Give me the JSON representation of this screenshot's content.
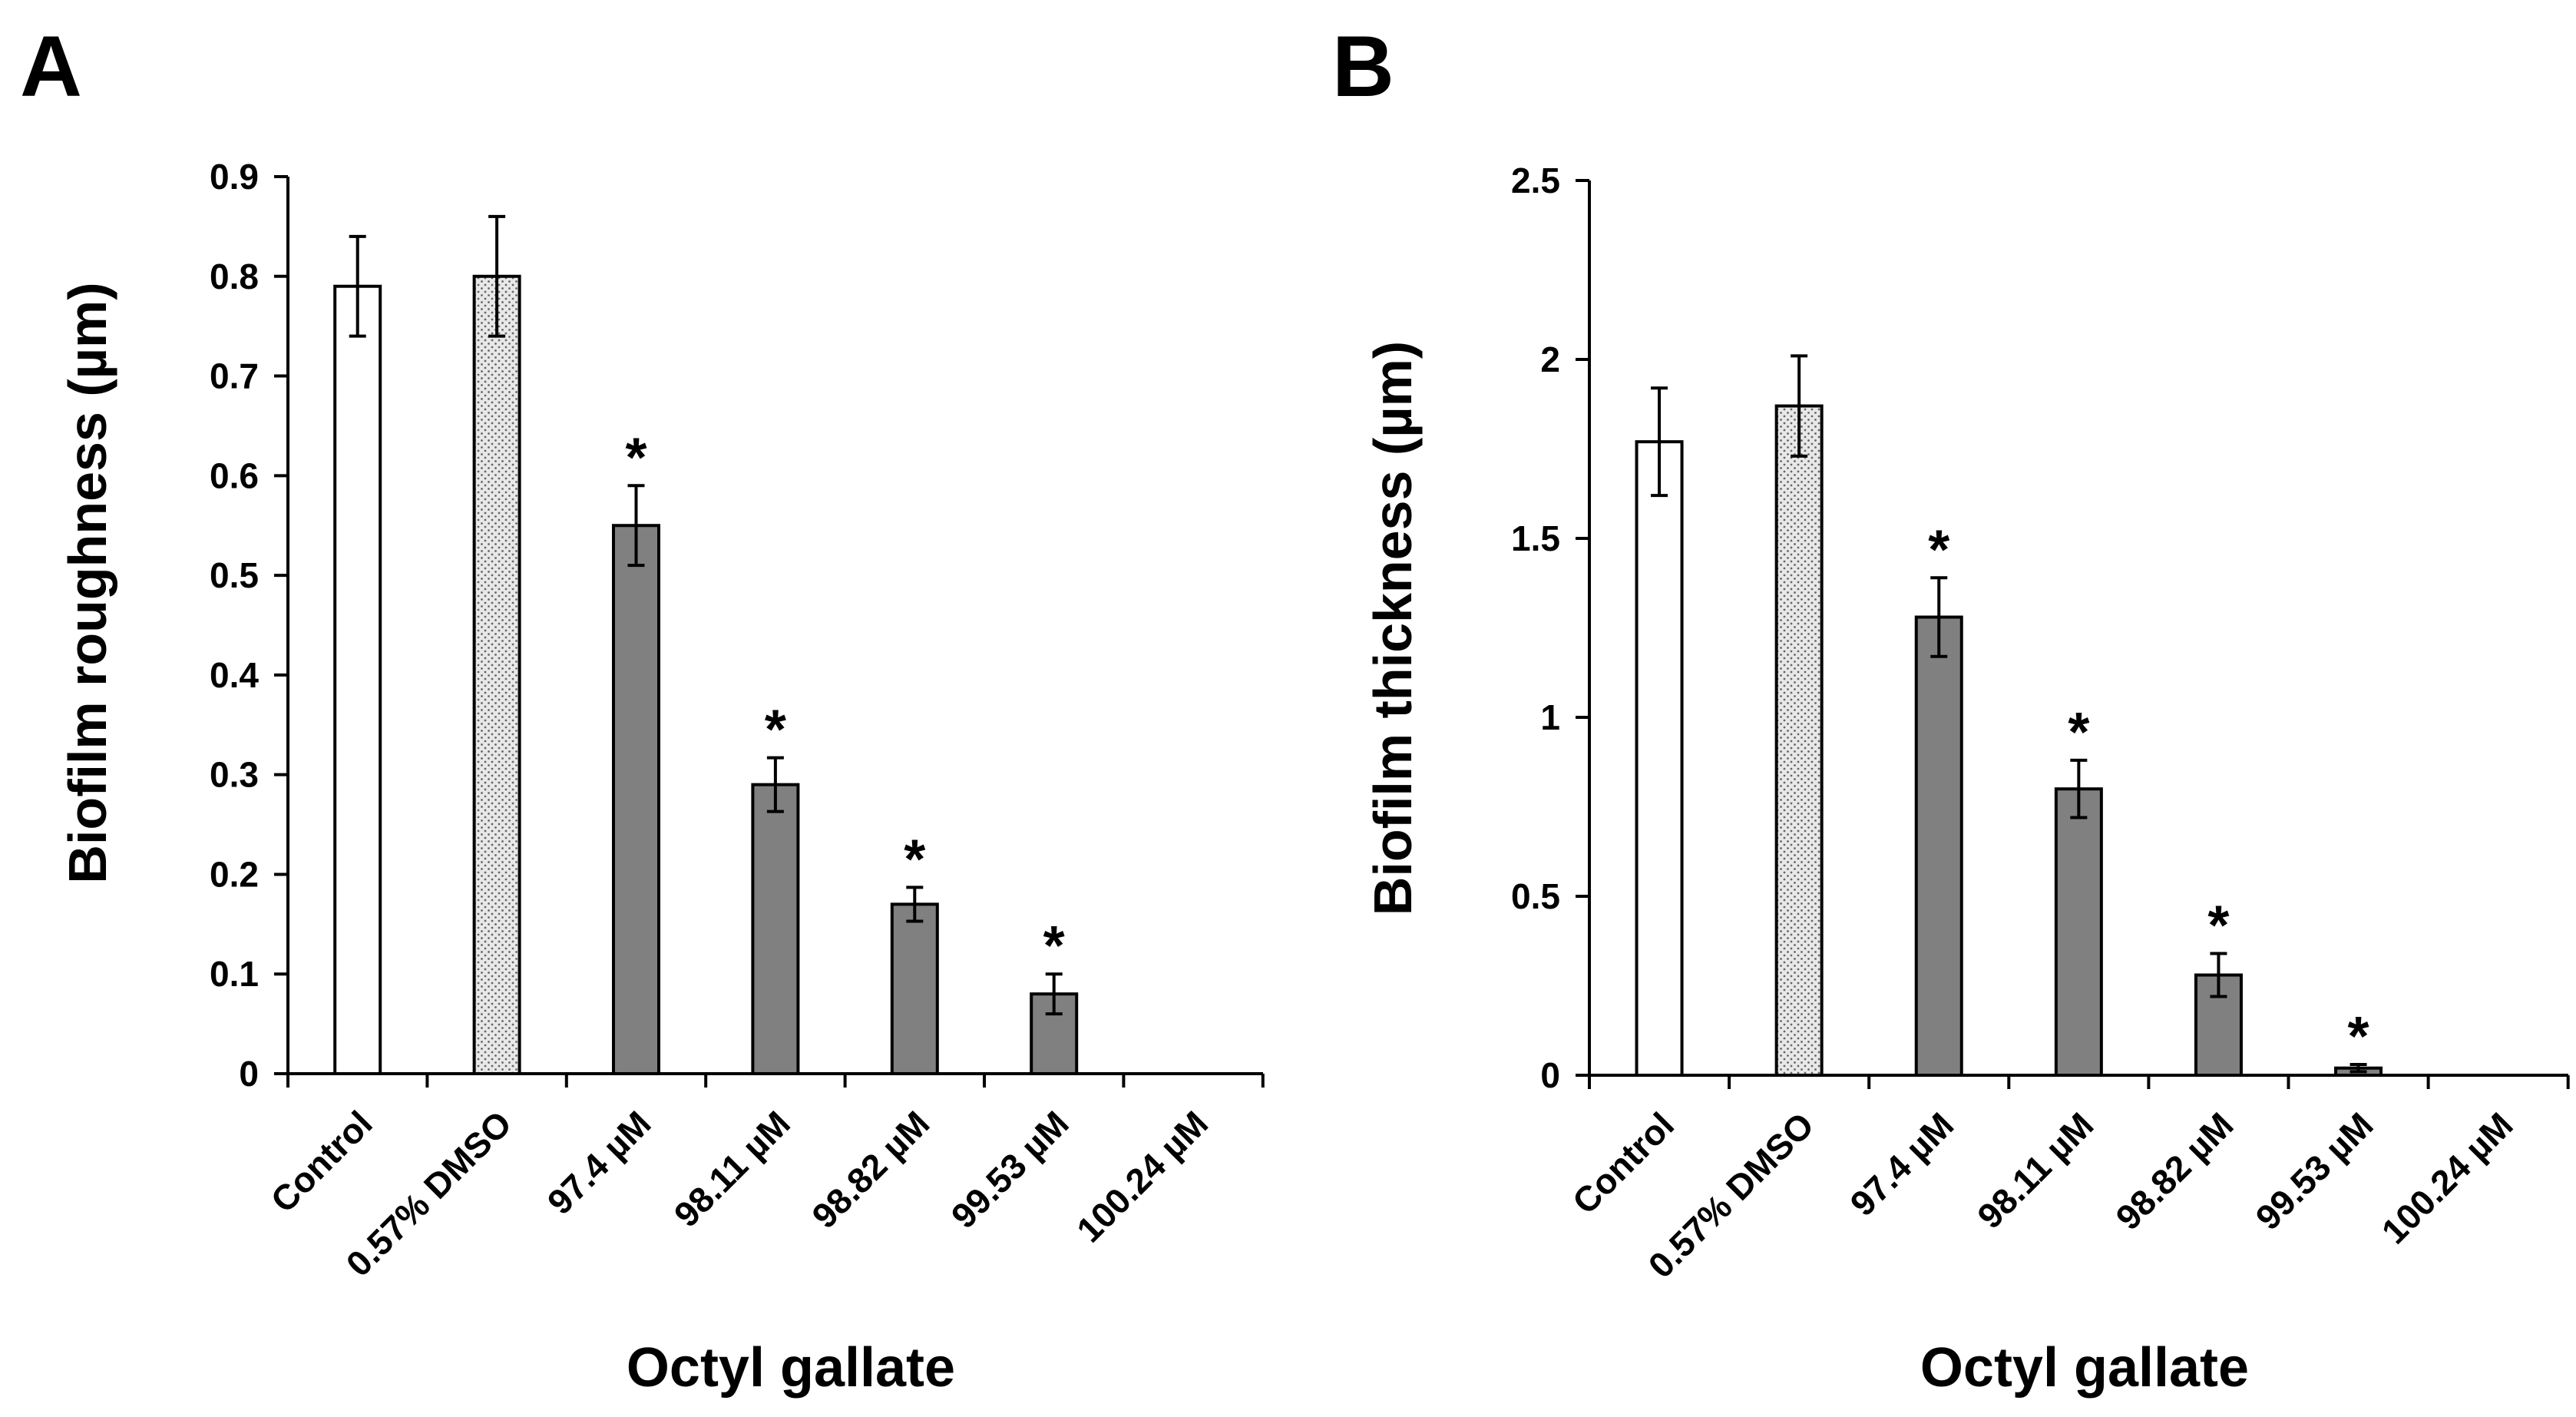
{
  "figure": {
    "panels": [
      {
        "label": "A",
        "x_label": "Octyl gallate",
        "y_label": "Biofilm roughness (µm)"
      },
      {
        "label": "B",
        "x_label": "Octyl gallate",
        "y_label": "Biofilm thickness (µm)"
      }
    ]
  },
  "chart_data": [
    {
      "type": "bar",
      "panel": "A",
      "title": "",
      "xlabel": "Octyl gallate",
      "ylabel": "Biofilm roughness (µm)",
      "categories": [
        "Control",
        "0.57% DMSO",
        "97.4 µM",
        "98.11 µM",
        "98.82 µM",
        "99.53 µM",
        "100.24 µM"
      ],
      "values": [
        0.79,
        0.8,
        0.55,
        0.29,
        0.17,
        0.08,
        0
      ],
      "errors": [
        0.05,
        0.06,
        0.04,
        0.027,
        0.017,
        0.02,
        0
      ],
      "significance": [
        "",
        "",
        "*",
        "*",
        "*",
        "*",
        ""
      ],
      "fills": [
        "white",
        "dotted",
        "gray",
        "gray",
        "gray",
        "gray",
        "gray"
      ],
      "ylim": [
        0,
        0.9
      ],
      "yticks": [
        0,
        0.1,
        0.2,
        0.3,
        0.4,
        0.5,
        0.6,
        0.7,
        0.8,
        0.9
      ],
      "ytick_labels": [
        "0",
        "0.1",
        "0.2",
        "0.3",
        "0.4",
        "0.5",
        "0.6",
        "0.7",
        "0.8",
        "0.9"
      ],
      "grid": false,
      "colors": {
        "gray_fill": "#808080",
        "white_fill": "#ffffff",
        "dot_fill": "#dcdcdc",
        "stroke": "#000000"
      }
    },
    {
      "type": "bar",
      "panel": "B",
      "title": "",
      "xlabel": "Octyl gallate",
      "ylabel": "Biofilm thickness (µm)",
      "categories": [
        "Control",
        "0.57% DMSO",
        "97.4 µM",
        "98.11 µM",
        "98.82 µM",
        "99.53 µM",
        "100.24 µM"
      ],
      "values": [
        1.77,
        1.87,
        1.28,
        0.8,
        0.28,
        0.02,
        0
      ],
      "errors": [
        0.15,
        0.14,
        0.11,
        0.08,
        0.06,
        0.01,
        0
      ],
      "significance": [
        "",
        "",
        "*",
        "*",
        "*",
        "*",
        ""
      ],
      "fills": [
        "white",
        "dotted",
        "gray",
        "gray",
        "gray",
        "gray",
        "gray"
      ],
      "ylim": [
        0,
        2.5
      ],
      "yticks": [
        0,
        0.5,
        1,
        1.5,
        2,
        2.5
      ],
      "ytick_labels": [
        "0",
        "0.5",
        "1",
        "1.5",
        "2",
        "2.5"
      ],
      "grid": false,
      "colors": {
        "gray_fill": "#808080",
        "white_fill": "#ffffff",
        "dot_fill": "#dcdcdc",
        "stroke": "#000000"
      }
    }
  ]
}
